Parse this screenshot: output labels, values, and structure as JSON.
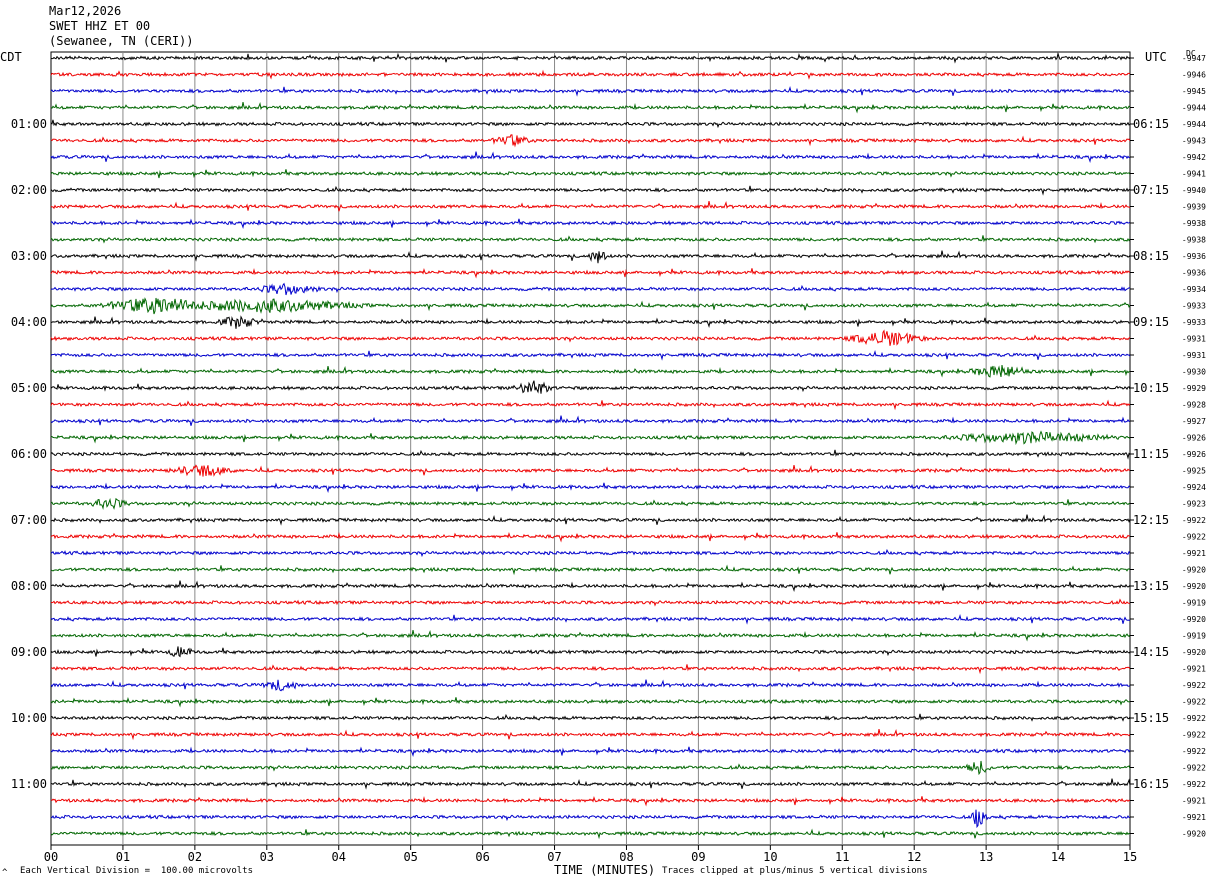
{
  "header": {
    "date": "Mar12,2026",
    "station": "SWET HHZ ET 00",
    "location": "(Sewanee, TN (CERI))"
  },
  "axes": {
    "left_tz": "CDT",
    "right_tz": "UTC",
    "dc_label": "DC",
    "x_title": "TIME (MINUTES)",
    "footer_left": "Each Vertical Division =  100.00 microvolts",
    "footer_right": "Traces clipped at plus/minus 5 vertical divisions",
    "footer_mark": "^"
  },
  "chart_data": {
    "type": "line",
    "title": "",
    "xlabel": "TIME (MINUTES)",
    "xlim": [
      0,
      15
    ],
    "x_ticks": [
      "00",
      "01",
      "02",
      "03",
      "04",
      "05",
      "06",
      "07",
      "08",
      "09",
      "10",
      "11",
      "12",
      "13",
      "14",
      "15"
    ],
    "trace_colors": [
      "#000000",
      "#ee0000",
      "#0000cc",
      "#006600"
    ],
    "left_hour_labels": [
      "01:00",
      "02:00",
      "03:00",
      "04:00",
      "05:00",
      "06:00",
      "07:00",
      "08:00",
      "09:00",
      "10:00",
      "11:00"
    ],
    "right_hour_labels": [
      "06:15",
      "07:15",
      "08:15",
      "09:15",
      "10:15",
      "11:15",
      "12:15",
      "13:15",
      "14:15",
      "15:15",
      "16:15"
    ],
    "dc_offsets": [
      "-9947",
      "-9946",
      "-9945",
      "-9944",
      "-9944",
      "-9943",
      "-9942",
      "-9941",
      "-9940",
      "-9939",
      "-9938",
      "-9938",
      "-9936",
      "-9936",
      "-9934",
      "-9933",
      "-9933",
      "-9931",
      "-9931",
      "-9930",
      "-9929",
      "-9928",
      "-9927",
      "-9926",
      "-9926",
      "-9925",
      "-9924",
      "-9923",
      "-9922",
      "-9922",
      "-9921",
      "-9920",
      "-9920",
      "-9919",
      "-9920",
      "-9919",
      "-9920",
      "-9921",
      "-9922",
      "-9922",
      "-9922",
      "-9922",
      "-9922",
      "-9922",
      "-9922",
      "-9921",
      "-9921",
      "-9920"
    ],
    "events": [
      [
        14,
        3.3,
        5,
        0.5
      ],
      [
        15,
        1.5,
        8,
        0.9
      ],
      [
        15,
        3.0,
        6,
        1.5
      ],
      [
        16,
        2.6,
        6,
        0.3
      ],
      [
        17,
        11.6,
        7,
        0.6
      ],
      [
        19,
        13.2,
        6,
        0.5
      ],
      [
        20,
        6.7,
        7,
        0.3
      ],
      [
        23,
        13.6,
        5,
        1.3
      ],
      [
        25,
        2.1,
        5,
        0.5
      ],
      [
        38,
        3.2,
        5,
        0.3
      ],
      [
        46,
        12.9,
        12,
        0.12
      ],
      [
        36,
        1.8,
        5,
        0.2
      ],
      [
        12,
        7.6,
        7,
        0.15
      ],
      [
        27,
        0.8,
        5,
        0.3
      ],
      [
        5,
        6.4,
        5,
        0.3
      ],
      [
        43,
        12.9,
        6,
        0.2
      ]
    ]
  }
}
